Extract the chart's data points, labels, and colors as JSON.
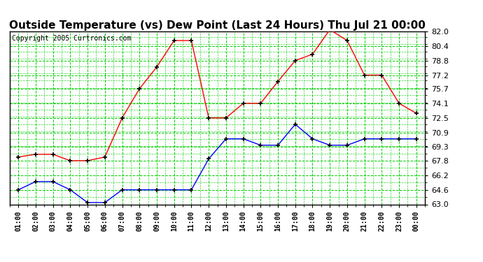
{
  "title": "Outside Temperature (vs) Dew Point (Last 24 Hours) Thu Jul 21 00:00",
  "copyright": "Copyright 2005 Curtronics.com",
  "x_labels": [
    "01:00",
    "02:00",
    "03:00",
    "04:00",
    "05:00",
    "06:00",
    "07:00",
    "08:00",
    "09:00",
    "10:00",
    "11:00",
    "12:00",
    "13:00",
    "14:00",
    "15:00",
    "16:00",
    "17:00",
    "18:00",
    "19:00",
    "20:00",
    "21:00",
    "22:00",
    "23:00",
    "00:00"
  ],
  "temp_red": [
    68.2,
    68.5,
    68.5,
    67.8,
    67.8,
    68.2,
    72.5,
    75.7,
    78.1,
    81.0,
    81.0,
    72.5,
    72.5,
    74.1,
    74.1,
    76.5,
    78.8,
    79.5,
    82.2,
    81.0,
    77.2,
    77.2,
    74.1,
    73.0
  ],
  "temp_blue": [
    64.6,
    65.5,
    65.5,
    64.6,
    63.2,
    63.2,
    64.6,
    64.6,
    64.6,
    64.6,
    64.6,
    68.0,
    70.2,
    70.2,
    69.5,
    69.5,
    71.8,
    70.2,
    69.5,
    69.5,
    70.2,
    70.2,
    70.2,
    70.2
  ],
  "y_ticks": [
    63.0,
    64.6,
    66.2,
    67.8,
    69.3,
    70.9,
    72.5,
    74.1,
    75.7,
    77.2,
    78.8,
    80.4,
    82.0
  ],
  "y_min": 63.0,
  "y_max": 82.0,
  "bg_color": "#ffffff",
  "plot_bg_color": "#ffffff",
  "grid_color": "#00cc00",
  "red_line_color": "#ff0000",
  "blue_line_color": "#0000ff",
  "marker_color": "#000000",
  "title_fontsize": 11,
  "copyright_fontsize": 7
}
